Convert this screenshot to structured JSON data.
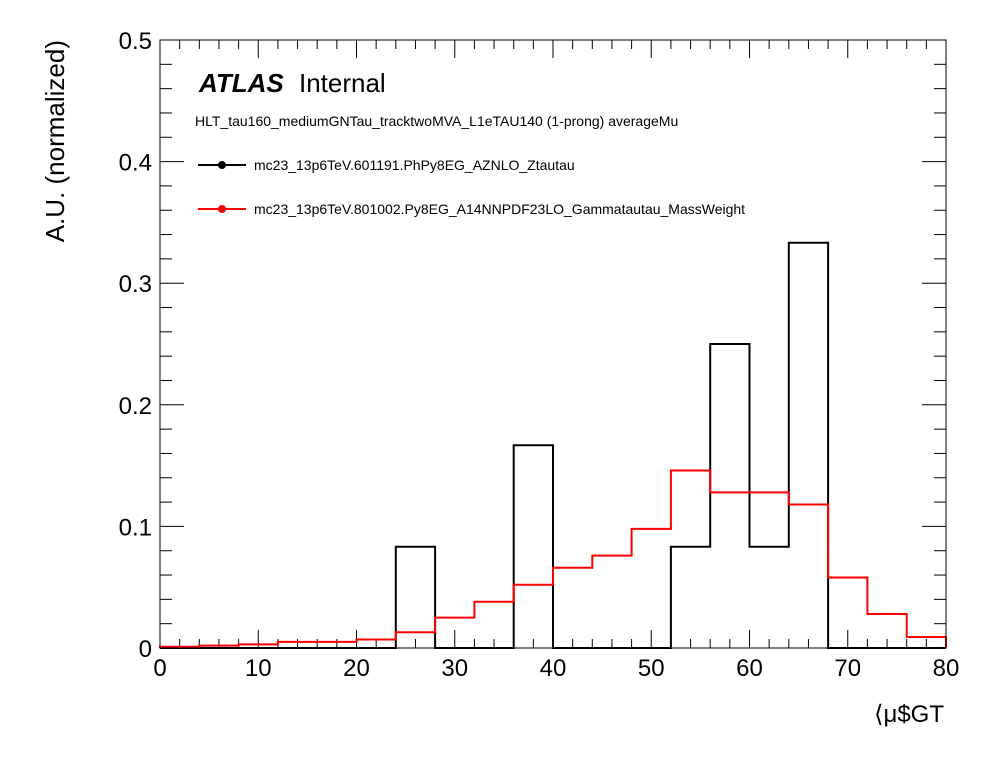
{
  "atlas": {
    "label": "ATLAS",
    "status": "Internal"
  },
  "info_line": "HLT_tau160_mediumGNTau_tracktwoMVA_L1eTAU140 (1-prong) averageMu",
  "chart_data": {
    "type": "histogram",
    "xlabel": "⟨μ$GT",
    "ylabel": "A.U. (normalized)",
    "xlim": [
      0,
      80
    ],
    "ylim": [
      0,
      0.5
    ],
    "x_ticks": [
      0,
      10,
      20,
      30,
      40,
      50,
      60,
      70,
      80
    ],
    "y_ticks": [
      0,
      0.1,
      0.2,
      0.3,
      0.4,
      0.5
    ],
    "x_tick_labels": [
      "0",
      "10",
      "20",
      "30",
      "40",
      "50",
      "60",
      "70",
      "80"
    ],
    "y_tick_labels": [
      "0",
      "0.1",
      "0.2",
      "0.3",
      "0.4",
      "0.5"
    ],
    "bin_edges": [
      0,
      4,
      8,
      12,
      16,
      20,
      24,
      28,
      32,
      36,
      40,
      44,
      48,
      52,
      56,
      60,
      64,
      68,
      72,
      76,
      80
    ],
    "legend_position": "top-left",
    "series": [
      {
        "name": "mc23_13p6TeV.601191.PhPy8EG_AZNLO_Ztautau",
        "color": "#000000",
        "values": [
          0,
          0,
          0,
          0,
          0,
          0,
          0.0833,
          0,
          0,
          0.1667,
          0,
          0,
          0,
          0.0833,
          0.25,
          0.0833,
          0.3333,
          0,
          0,
          0
        ]
      },
      {
        "name": "mc23_13p6TeV.801002.Py8EG_A14NNPDF23LO_Gammatautau_MassWeight",
        "color": "#ff0000",
        "values": [
          0.001,
          0.002,
          0.003,
          0.005,
          0.005,
          0.007,
          0.013,
          0.025,
          0.038,
          0.052,
          0.066,
          0.076,
          0.098,
          0.146,
          0.128,
          0.128,
          0.118,
          0.058,
          0.028,
          0.009
        ]
      }
    ]
  }
}
